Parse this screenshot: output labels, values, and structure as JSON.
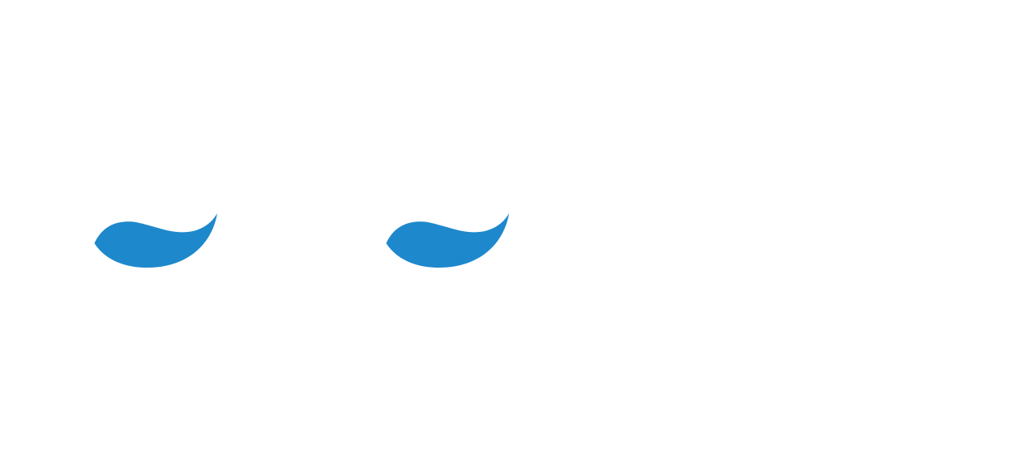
{
  "shapes": {
    "fill_color": "#1e88cc",
    "background_color": "#ffffff",
    "items": [
      {
        "name": "blue-swoosh-left",
        "icon": "swoosh-icon"
      },
      {
        "name": "blue-swoosh-right",
        "icon": "swoosh-icon"
      }
    ]
  }
}
